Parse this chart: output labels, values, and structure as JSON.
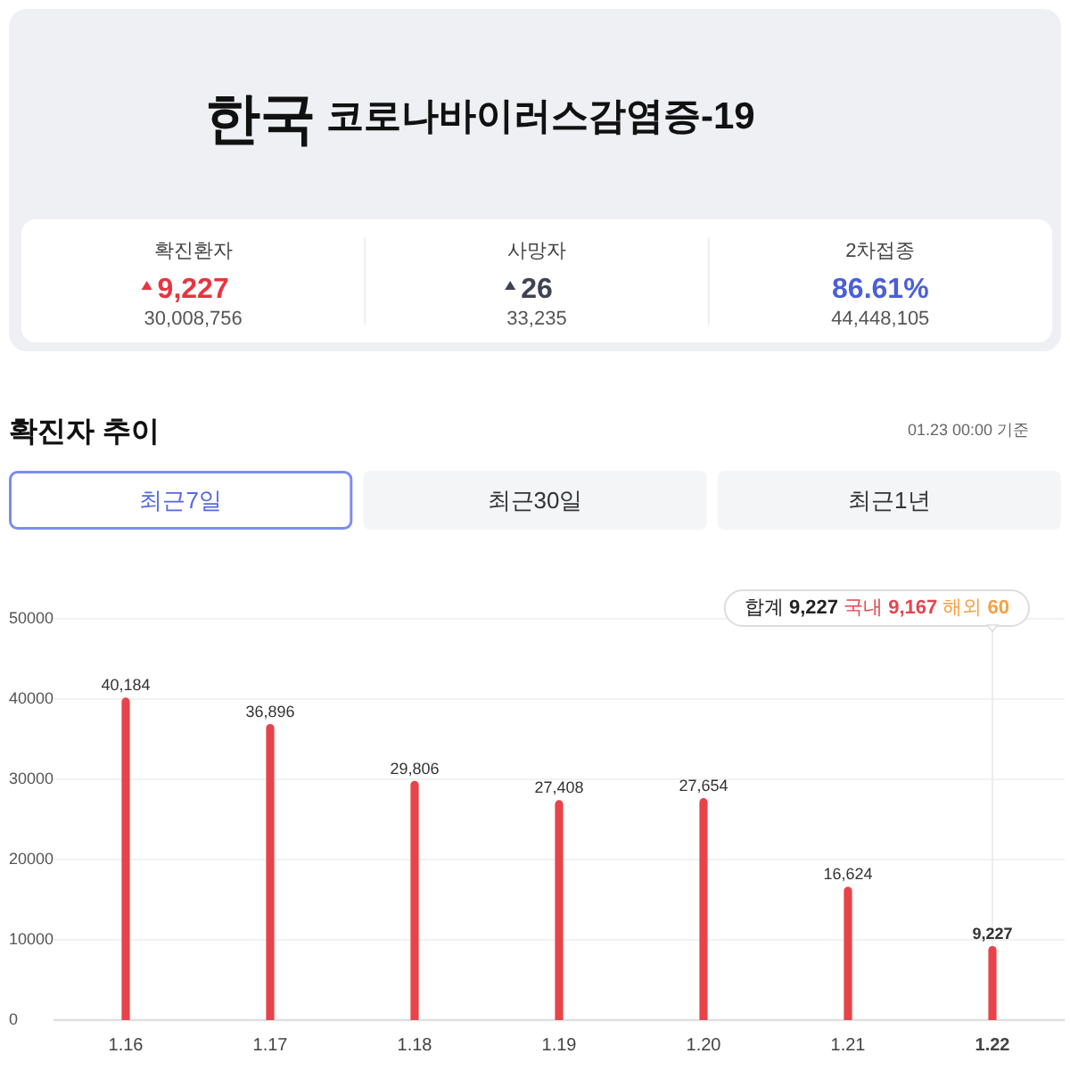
{
  "chart_data": [
    {
      "type": "other",
      "title": "한국",
      "subtitle": "코로나바이러스감염증-19",
      "annotations": [
        "확진환자",
        "9,227",
        "30,008,756",
        "사망자",
        "26",
        "33,235",
        "2차접종",
        "86.61%",
        "44,448,105"
      ]
    },
    {
      "type": "bar",
      "title": "확진자 추이",
      "annotations": [
        "01.23 00:00 기준",
        "최근7일",
        "최근30일",
        "최근1년",
        "합계 9,227 국내 9,167 해외 60"
      ],
      "categories": [
        "1.16",
        "1.17",
        "1.18",
        "1.19",
        "1.20",
        "1.21",
        "1.22"
      ],
      "values": [
        40184,
        36896,
        29806,
        27408,
        27654,
        16624,
        9227
      ],
      "value_labels": [
        "40,184",
        "36,896",
        "29,806",
        "27,408",
        "27,654",
        "16,624",
        "9,227"
      ],
      "color": "#e8434a",
      "ylim": [
        0,
        50000
      ],
      "yticks": [
        0,
        10000,
        20000,
        30000,
        40000,
        50000
      ],
      "grid": "y",
      "ref_lines": [
        {
          "axis": "x",
          "value": "1.22",
          "color": "#ececec"
        }
      ]
    }
  ]
}
